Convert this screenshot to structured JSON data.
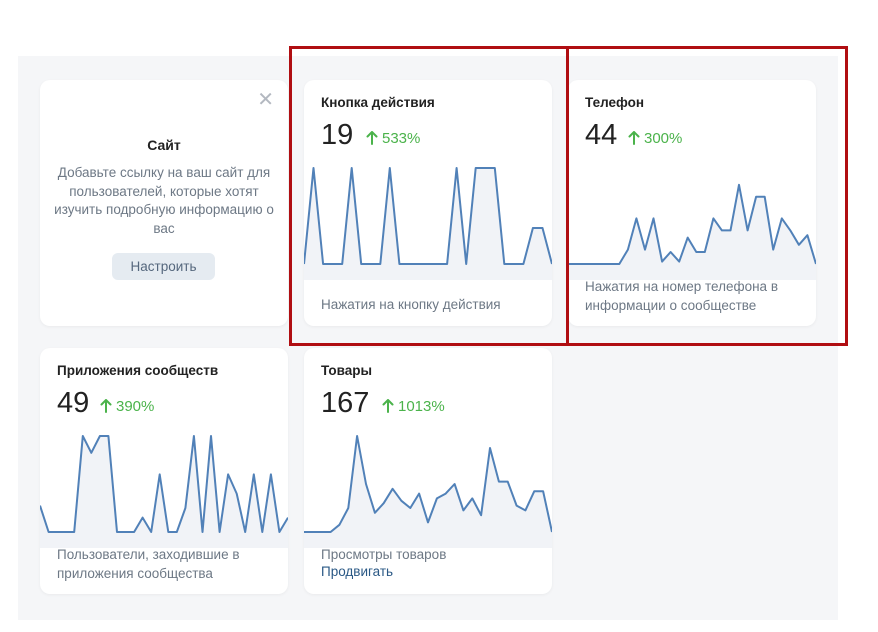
{
  "site_card": {
    "title": "Сайт",
    "description": "Добавьте ссылку на ваш сайт для пользователей, которые хотят изучить подробную информацию о вас",
    "button": "Настроить",
    "close_icon": "close-icon"
  },
  "cards": [
    {
      "title": "Кнопка действия",
      "value": "19",
      "growth": "533%",
      "caption": "Нажатия на кнопку действия",
      "series": [
        1,
        5,
        1,
        1,
        1,
        5,
        1,
        1,
        1,
        5,
        1,
        1,
        1,
        1,
        1,
        1,
        5,
        1,
        5,
        5,
        5,
        1,
        1,
        1,
        2.5,
        2.5,
        1
      ]
    },
    {
      "title": "Телефон",
      "value": "44",
      "growth": "300%",
      "caption": "Нажатия на номер телефона в информации о сообществе",
      "series": [
        1,
        1,
        1,
        1,
        1,
        1,
        1,
        1.6,
        2.9,
        1.6,
        2.9,
        1.1,
        1.5,
        1.1,
        2.1,
        1.5,
        1.5,
        2.9,
        2.4,
        2.4,
        4.3,
        2.4,
        3.8,
        3.8,
        1.6,
        2.9,
        2.4,
        1.8,
        2.2,
        1
      ]
    },
    {
      "title": "Приложения сообществ",
      "value": "49",
      "growth": "390%",
      "caption": "Пользователи, заходившие в приложения сообщества",
      "series": [
        2.1,
        1,
        1,
        1,
        1,
        5,
        4.3,
        5,
        5,
        1,
        1,
        1,
        1.6,
        1,
        3.4,
        1,
        1,
        2,
        5,
        1,
        5,
        1,
        3.4,
        2.6,
        1,
        3.4,
        1,
        3.4,
        1,
        1.6
      ]
    },
    {
      "title": "Товары",
      "value": "167",
      "growth": "1013%",
      "caption": "Просмотры товаров",
      "link": "Продвигать",
      "series": [
        1,
        1,
        1,
        1,
        1.3,
        2,
        5,
        3,
        1.8,
        2.2,
        2.8,
        2.3,
        2,
        2.6,
        1.4,
        2.4,
        2.6,
        3,
        1.9,
        2.4,
        1.7,
        4.5,
        3.1,
        3.1,
        2.1,
        1.9,
        2.7,
        2.7,
        1
      ]
    }
  ],
  "arrow_icon": "arrow-up-icon",
  "colors": {
    "accent": "#5181b8",
    "growth": "#4bb34b",
    "highlight": "#b00e12"
  }
}
